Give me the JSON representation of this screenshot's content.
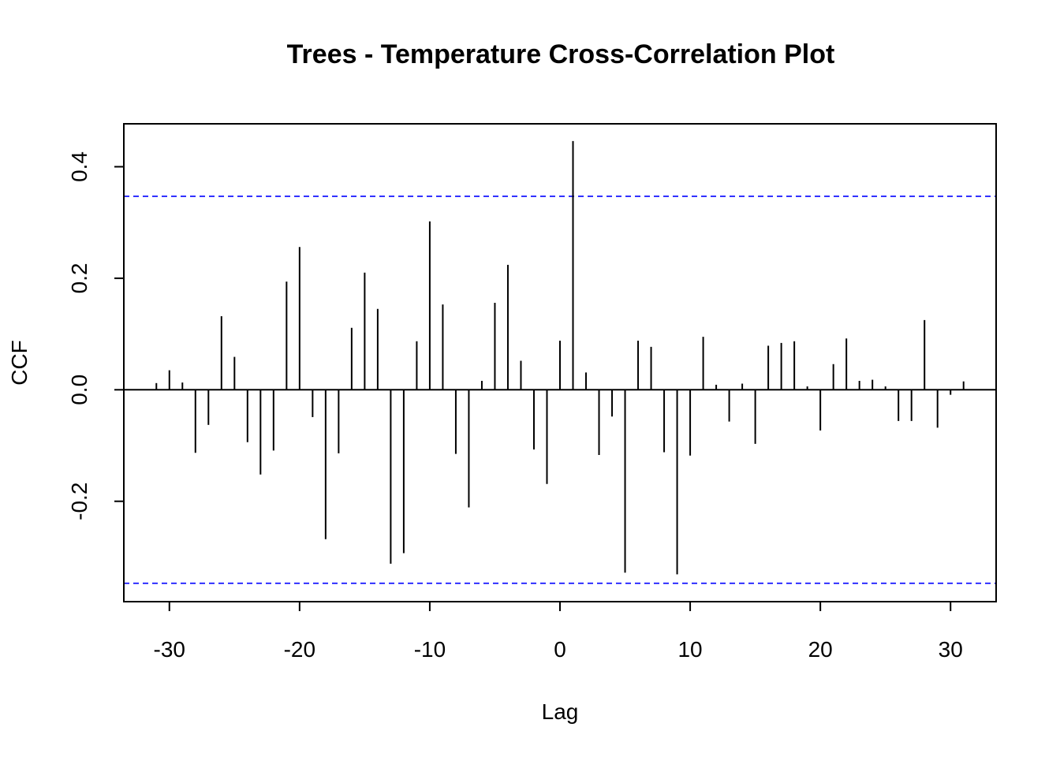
{
  "chart_data": {
    "type": "bar",
    "title": "Trees - Temperature Cross-Correlation Plot",
    "xlabel": "Lag",
    "ylabel": "CCF",
    "xlim": [
      -33.5,
      33.5
    ],
    "ylim": [
      -0.38,
      0.477
    ],
    "x_ticks": [
      -30,
      -20,
      -10,
      0,
      10,
      20,
      30
    ],
    "x_tick_labels": [
      "-30",
      "-20",
      "-10",
      "0",
      "10",
      "20",
      "30"
    ],
    "y_ticks": [
      -0.2,
      0.0,
      0.2,
      0.4
    ],
    "y_tick_labels": [
      "-0.2",
      "0.0",
      "0.2",
      "0.4"
    ],
    "confidence_limit": 0.347,
    "confidence_color": "#0000ff",
    "bar_color": "#000000",
    "grid": false,
    "lags": [
      -31,
      -30,
      -29,
      -28,
      -27,
      -26,
      -25,
      -24,
      -23,
      -22,
      -21,
      -20,
      -19,
      -18,
      -17,
      -16,
      -15,
      -14,
      -13,
      -12,
      -11,
      -10,
      -9,
      -8,
      -7,
      -6,
      -5,
      -4,
      -3,
      -2,
      -1,
      0,
      1,
      2,
      3,
      4,
      5,
      6,
      7,
      8,
      9,
      10,
      11,
      12,
      13,
      14,
      15,
      16,
      17,
      18,
      19,
      20,
      21,
      22,
      23,
      24,
      25,
      26,
      27,
      28,
      29,
      30,
      31
    ],
    "values": [
      0.012,
      0.035,
      0.013,
      -0.113,
      -0.063,
      0.132,
      0.059,
      -0.094,
      -0.152,
      -0.109,
      0.194,
      0.256,
      -0.049,
      -0.268,
      -0.114,
      0.111,
      0.21,
      0.145,
      -0.312,
      -0.293,
      0.087,
      0.302,
      0.153,
      -0.115,
      -0.211,
      0.016,
      0.156,
      0.224,
      0.052,
      -0.107,
      -0.169,
      0.088,
      0.446,
      0.031,
      -0.117,
      -0.048,
      -0.328,
      0.088,
      0.077,
      -0.112,
      -0.331,
      -0.118,
      0.095,
      0.009,
      -0.057,
      0.011,
      -0.097,
      0.079,
      0.084,
      0.087,
      0.006,
      -0.073,
      0.046,
      0.092,
      0.016,
      0.018,
      0.006,
      -0.056,
      -0.056,
      0.125,
      -0.068,
      -0.009,
      0.015
    ]
  }
}
